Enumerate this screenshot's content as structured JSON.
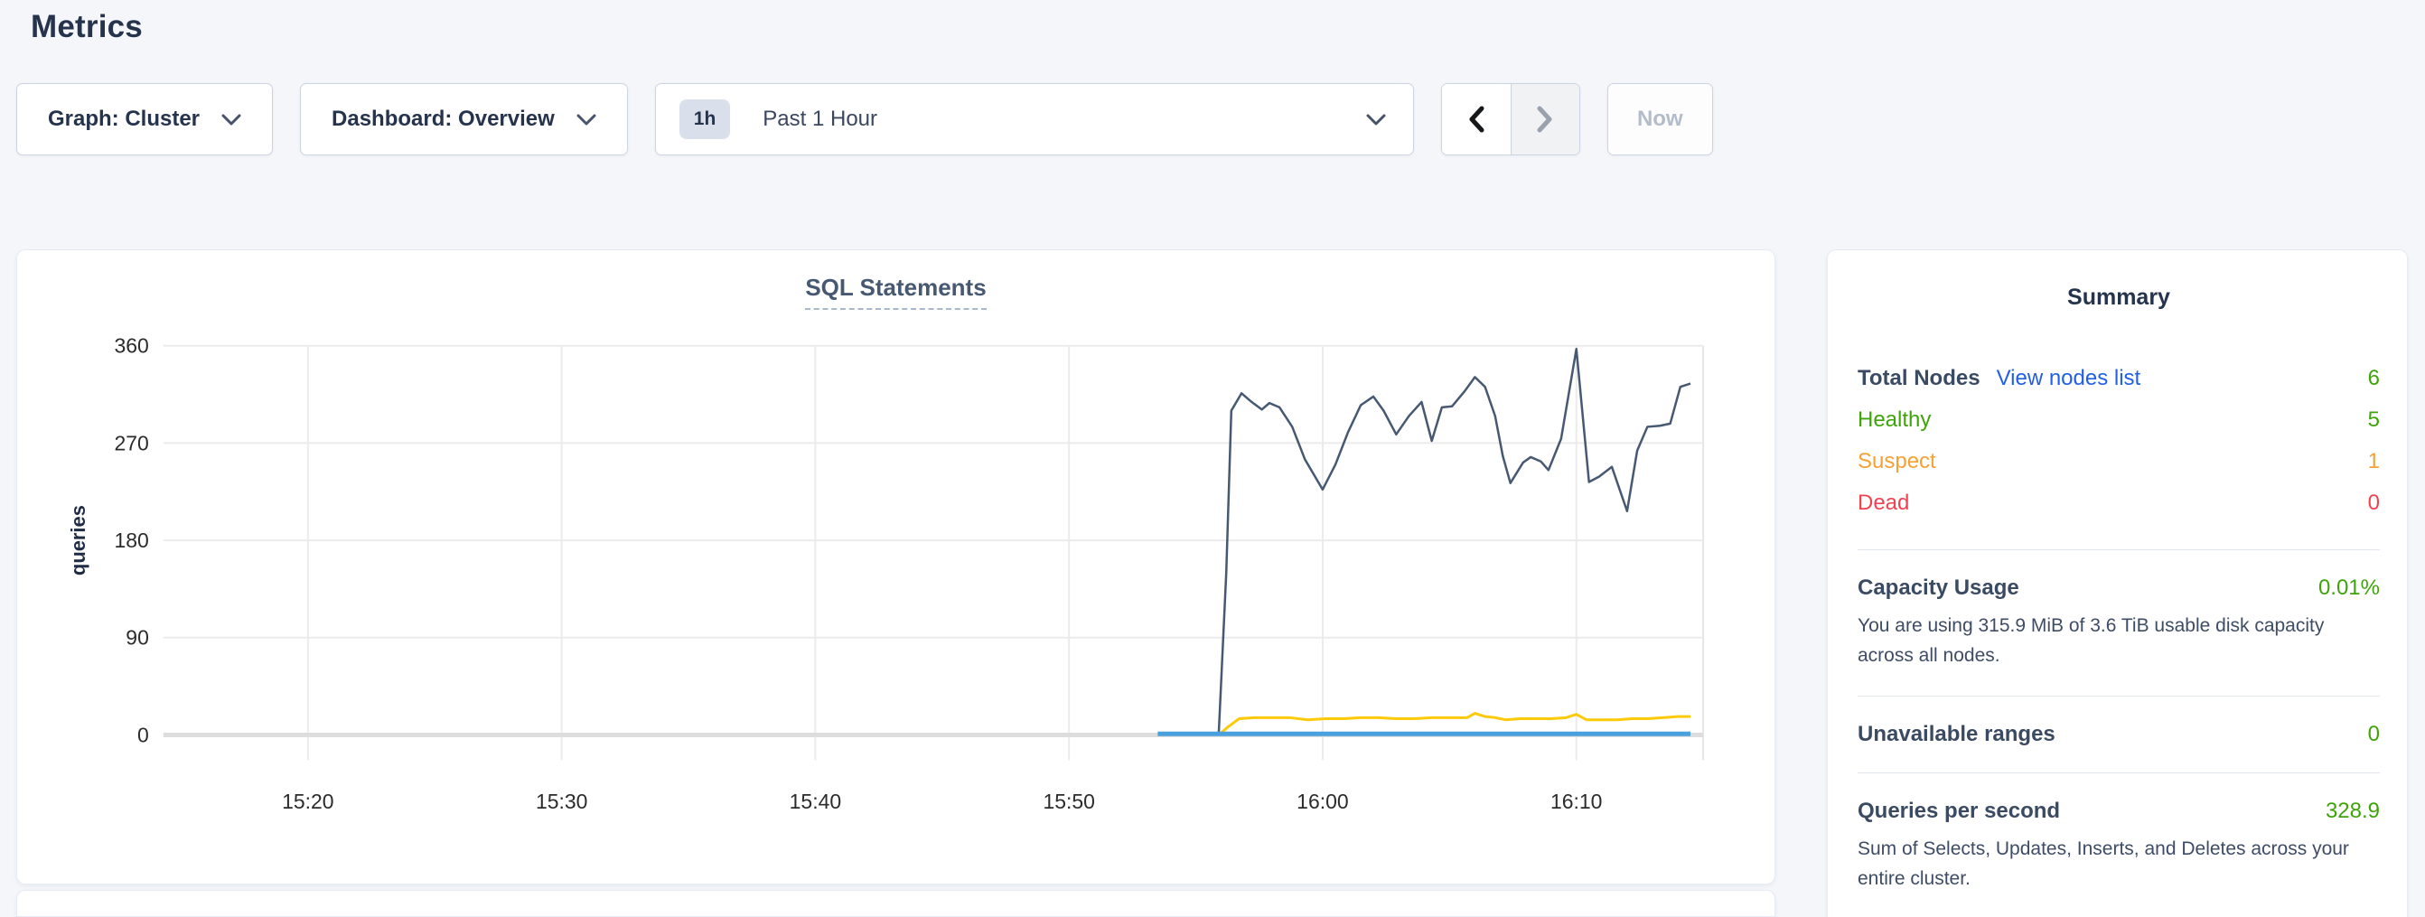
{
  "page": {
    "title": "Metrics"
  },
  "toolbar": {
    "graph_dropdown": {
      "label": "Graph: Cluster"
    },
    "dashboard_dropdown": {
      "label": "Dashboard: Overview"
    },
    "time_picker": {
      "badge": "1h",
      "label": "Past 1 Hour"
    },
    "prev_label": "previous time window",
    "next_label": "next time window",
    "now_button": "Now"
  },
  "chart_data": {
    "type": "line",
    "title": "SQL Statements",
    "ylabel": "queries",
    "xlabel": "",
    "grid": true,
    "legend_position": "none",
    "x_unit": "minutes after 15:00",
    "x_domain": [
      14.3,
      75
    ],
    "ylim": [
      0,
      360
    ],
    "y_ticks": [
      0,
      90,
      180,
      270,
      360
    ],
    "x_ticks": [
      {
        "t": 20,
        "label": "15:20"
      },
      {
        "t": 30,
        "label": "15:30"
      },
      {
        "t": 40,
        "label": "15:40"
      },
      {
        "t": 50,
        "label": "15:50"
      },
      {
        "t": 60,
        "label": "16:00"
      },
      {
        "t": 70,
        "label": "16:10"
      }
    ],
    "series": [
      {
        "name": "dark-slate-line",
        "color": "#475872",
        "width": 2.5,
        "points": [
          [
            55.9,
            0
          ],
          [
            56.2,
            150
          ],
          [
            56.4,
            300
          ],
          [
            56.8,
            316
          ],
          [
            57.2,
            308
          ],
          [
            57.6,
            301
          ],
          [
            57.9,
            307
          ],
          [
            58.3,
            303
          ],
          [
            58.8,
            285
          ],
          [
            59.3,
            255
          ],
          [
            60.0,
            227
          ],
          [
            60.5,
            250
          ],
          [
            61.0,
            280
          ],
          [
            61.5,
            305
          ],
          [
            62.0,
            313
          ],
          [
            62.4,
            300
          ],
          [
            62.9,
            278
          ],
          [
            63.4,
            295
          ],
          [
            63.9,
            308
          ],
          [
            64.3,
            272
          ],
          [
            64.7,
            303
          ],
          [
            65.1,
            304
          ],
          [
            65.6,
            318
          ],
          [
            66.0,
            331
          ],
          [
            66.4,
            322
          ],
          [
            66.8,
            295
          ],
          [
            67.1,
            258
          ],
          [
            67.4,
            233
          ],
          [
            67.9,
            252
          ],
          [
            68.2,
            257
          ],
          [
            68.6,
            253
          ],
          [
            68.9,
            245
          ],
          [
            69.4,
            274
          ],
          [
            70.0,
            357
          ],
          [
            70.5,
            234
          ],
          [
            70.9,
            239
          ],
          [
            71.4,
            248
          ],
          [
            72.0,
            207
          ],
          [
            72.4,
            263
          ],
          [
            72.8,
            285
          ],
          [
            73.3,
            286
          ],
          [
            73.7,
            288
          ],
          [
            74.1,
            322
          ],
          [
            74.5,
            325
          ]
        ]
      },
      {
        "name": "yellow-line",
        "color": "#fdca0a",
        "width": 3,
        "points": [
          [
            55.9,
            0
          ],
          [
            56.3,
            8
          ],
          [
            56.7,
            15
          ],
          [
            57.3,
            16
          ],
          [
            58.0,
            16
          ],
          [
            58.7,
            16
          ],
          [
            59.4,
            14
          ],
          [
            60.1,
            15
          ],
          [
            60.8,
            15
          ],
          [
            61.5,
            16
          ],
          [
            62.2,
            16
          ],
          [
            62.9,
            15
          ],
          [
            63.6,
            15
          ],
          [
            64.3,
            16
          ],
          [
            65.0,
            16
          ],
          [
            65.7,
            16
          ],
          [
            66.0,
            20
          ],
          [
            66.4,
            17
          ],
          [
            66.8,
            16
          ],
          [
            67.2,
            14
          ],
          [
            67.8,
            15
          ],
          [
            68.4,
            15
          ],
          [
            69.0,
            15
          ],
          [
            69.6,
            16
          ],
          [
            70.0,
            19
          ],
          [
            70.4,
            14
          ],
          [
            71.0,
            14
          ],
          [
            71.6,
            14
          ],
          [
            72.2,
            15
          ],
          [
            72.8,
            15
          ],
          [
            73.4,
            16
          ],
          [
            74.0,
            17
          ],
          [
            74.5,
            17
          ]
        ]
      },
      {
        "name": "blue-line",
        "color": "#48a1dd",
        "width": 5,
        "points": [
          [
            53.5,
            1
          ],
          [
            74.5,
            1
          ]
        ]
      }
    ]
  },
  "summary": {
    "title": "Summary",
    "node_rows": [
      {
        "label": "Total Nodes",
        "link": "View nodes list",
        "value": "6"
      },
      {
        "label": "Healthy",
        "value": "5"
      },
      {
        "label": "Suspect",
        "value": "1"
      },
      {
        "label": "Dead",
        "value": "0"
      }
    ],
    "sections": [
      {
        "label": "Capacity Usage",
        "value": "0.01%",
        "desc": "You are using 315.9 MiB of 3.6 TiB usable disk capacity across all nodes."
      },
      {
        "label": "Unavailable ranges",
        "value": "0",
        "desc": ""
      },
      {
        "label": "Queries per second",
        "value": "328.9",
        "desc": "Sum of Selects, Updates, Inserts, and Deletes across your entire cluster."
      }
    ]
  },
  "colors": {
    "green": "#3fa30a",
    "orange": "#f7a133",
    "red": "#ef4352",
    "link_blue": "#2160e6",
    "accent_slate": "#475872"
  }
}
